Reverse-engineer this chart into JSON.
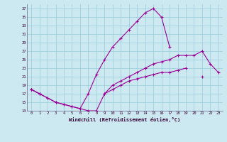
{
  "xlabel": "Windchill (Refroidissement éolien,°C)",
  "background_color": "#cce8f0",
  "grid_color": "#99ccdd",
  "line_color": "#990099",
  "ylim": [
    13,
    38
  ],
  "xlim": [
    -0.5,
    23.5
  ],
  "yticks": [
    13,
    15,
    17,
    19,
    21,
    23,
    25,
    27,
    29,
    31,
    33,
    35,
    37
  ],
  "xticks": [
    0,
    1,
    2,
    3,
    4,
    5,
    6,
    7,
    8,
    9,
    10,
    11,
    12,
    13,
    14,
    15,
    16,
    17,
    18,
    19,
    20,
    21,
    22,
    23
  ],
  "series": [
    {
      "segments": [
        [
          [
            0,
            18
          ],
          [
            1,
            17
          ],
          [
            2,
            16
          ],
          [
            3,
            15
          ],
          [
            4,
            14.5
          ],
          [
            5,
            14
          ],
          [
            6,
            13.5
          ],
          [
            7,
            17
          ],
          [
            8,
            21.5
          ],
          [
            9,
            25
          ],
          [
            10,
            28
          ],
          [
            11,
            30
          ],
          [
            12,
            32
          ],
          [
            13,
            34
          ],
          [
            14,
            36
          ],
          [
            15,
            37
          ],
          [
            16,
            35
          ],
          [
            17,
            28
          ]
        ]
      ]
    },
    {
      "segments": [
        [
          [
            0,
            18
          ],
          [
            1,
            17
          ],
          [
            2,
            16
          ],
          [
            3,
            15
          ],
          [
            4,
            14.5
          ],
          [
            5,
            14
          ],
          [
            6,
            13.5
          ],
          [
            7,
            13
          ],
          [
            8,
            13
          ],
          [
            9,
            17
          ],
          [
            10,
            19
          ],
          [
            11,
            20
          ],
          [
            12,
            21
          ],
          [
            13,
            22
          ],
          [
            14,
            23
          ],
          [
            15,
            24
          ],
          [
            16,
            24.5
          ],
          [
            17,
            25
          ],
          [
            18,
            26
          ],
          [
            19,
            26
          ],
          [
            20,
            26
          ],
          [
            21,
            27
          ],
          [
            22,
            24
          ],
          [
            23,
            22
          ]
        ]
      ]
    },
    {
      "segments": [
        [
          [
            0,
            18
          ],
          [
            1,
            17
          ]
        ],
        [
          [
            9,
            17
          ],
          [
            10,
            18
          ],
          [
            11,
            19
          ],
          [
            12,
            20
          ],
          [
            13,
            20.5
          ],
          [
            14,
            21
          ],
          [
            15,
            21.5
          ],
          [
            16,
            22
          ],
          [
            17,
            22
          ],
          [
            18,
            22.5
          ],
          [
            19,
            23
          ]
        ],
        [
          [
            21,
            21
          ]
        ]
      ]
    }
  ]
}
